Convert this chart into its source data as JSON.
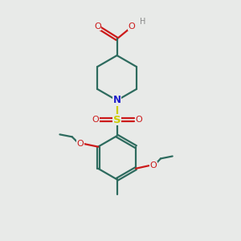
{
  "background_color": "#e8eae8",
  "bond_color": "#2d6b5e",
  "N_color": "#1a1acc",
  "O_color": "#cc1a1a",
  "S_color": "#cccc00",
  "H_color": "#888888",
  "line_width": 1.6,
  "figsize": [
    3.0,
    3.0
  ],
  "dpi": 100,
  "xlim": [
    0,
    10
  ],
  "ylim": [
    0,
    10
  ]
}
